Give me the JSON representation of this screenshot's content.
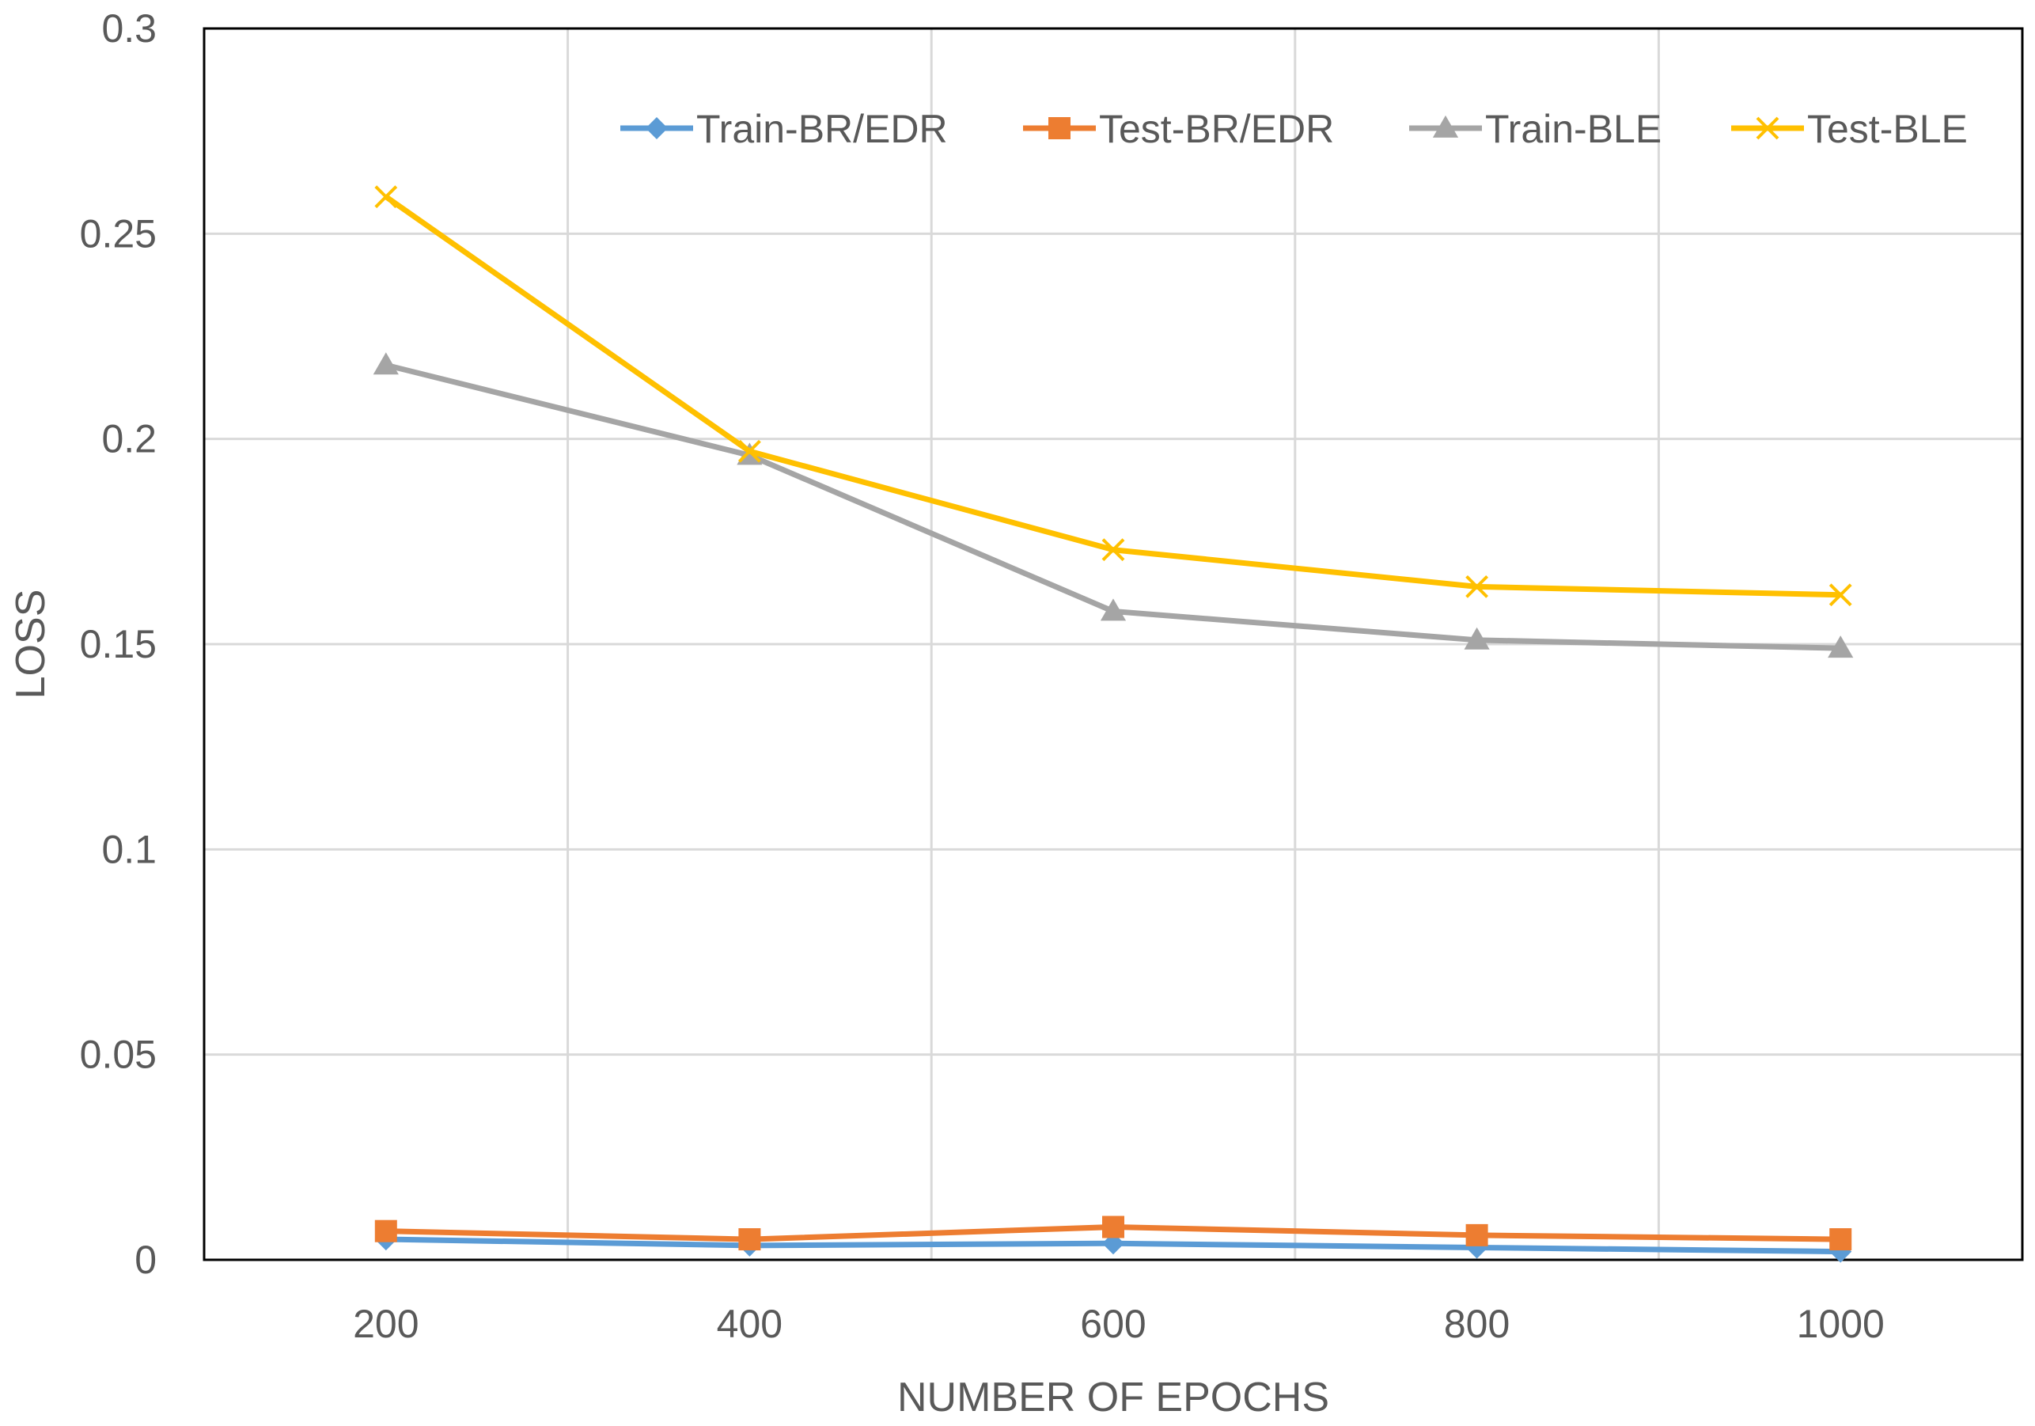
{
  "chart_data": {
    "type": "line",
    "title": "",
    "xlabel": "NUMBER OF EPOCHS",
    "ylabel": "LOSS",
    "x": [
      200,
      400,
      600,
      800,
      1000
    ],
    "xlim": [
      100,
      1100
    ],
    "ylim": [
      0,
      0.3
    ],
    "xticks": [
      "200",
      "400",
      "600",
      "800",
      "1000"
    ],
    "yticks": [
      "0",
      "0.05",
      "0.1",
      "0.15",
      "0.2",
      "0.25",
      "0.3"
    ],
    "grid": true,
    "legend_position": "top-right (inside plot)",
    "series": [
      {
        "name": "Train-BR/EDR",
        "color": "#5B9BD5",
        "marker": "diamond",
        "values": [
          0.005,
          0.0035,
          0.004,
          0.003,
          0.002
        ]
      },
      {
        "name": "Test-BR/EDR",
        "color": "#ED7D31",
        "marker": "square",
        "values": [
          0.007,
          0.005,
          0.008,
          0.006,
          0.005
        ]
      },
      {
        "name": "Train-BLE",
        "color": "#A5A5A5",
        "marker": "triangle",
        "values": [
          0.218,
          0.196,
          0.158,
          0.151,
          0.149
        ]
      },
      {
        "name": "Test-BLE",
        "color": "#FFC000",
        "marker": "x",
        "values": [
          0.259,
          0.197,
          0.173,
          0.164,
          0.162
        ]
      }
    ]
  }
}
